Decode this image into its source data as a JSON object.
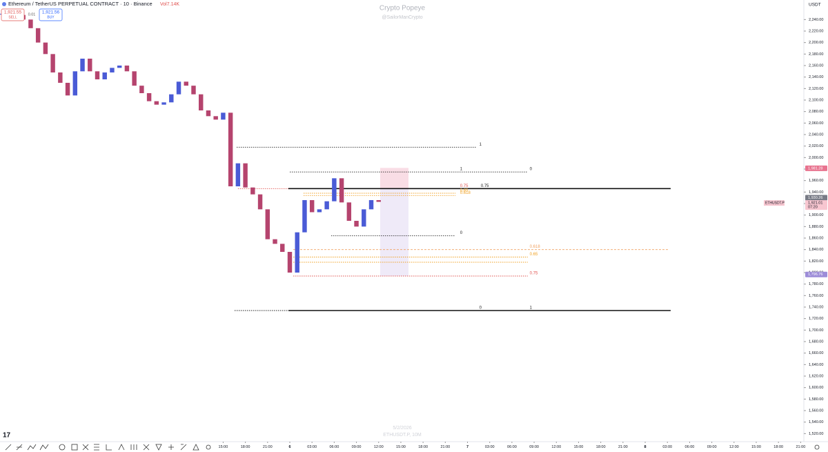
{
  "header": {
    "symbol": "Ethereum / TetherUS PERPETUAL CONTRACT · 10 · Binance",
    "volume": "Vol7.14K",
    "sell_price": "1,921.55",
    "sell": "SELL",
    "spread": "0.01",
    "buy_price": "1,921.56",
    "buy": "BUY",
    "currency": "USDT"
  },
  "watermark": {
    "title": "Crypto Popeye",
    "handle": "@SailorManCrypto",
    "date": "5/2/2026",
    "symbol": "ETHUSDT.P, 10M"
  },
  "chart_data": {
    "type": "candlestick",
    "up_color": "#4a5bd6",
    "down_color": "#b5446e",
    "x": [
      -39,
      -38,
      -37,
      -36,
      -35,
      -34,
      -33,
      -32,
      -31,
      -30,
      -29,
      -28,
      -27,
      -26,
      -25,
      -24,
      -23,
      -22,
      -21,
      -20,
      -19,
      -18,
      -17,
      -16,
      -15,
      -14,
      -13,
      -12,
      -11,
      -10,
      -9,
      -8,
      -7,
      -6,
      -5,
      -4,
      -3,
      -2,
      -1,
      0,
      1,
      2,
      3,
      4,
      5,
      6,
      7,
      8,
      9,
      10,
      11,
      12
    ],
    "close": [
      2250,
      2252,
      2248,
      2240,
      2225,
      2200,
      2180,
      2148,
      2130,
      2108,
      2150,
      2172,
      2150,
      2136,
      2148,
      2156,
      2160,
      2150,
      2125,
      2112,
      2098,
      2092,
      2096,
      2110,
      2132,
      2125,
      2110,
      2082,
      2072,
      2066,
      2078,
      1950,
      1990,
      1948,
      1936,
      1910,
      1858,
      1850,
      1836,
      1800,
      1870,
      1926,
      1905,
      1910,
      1924,
      1964,
      1922,
      1890,
      1880,
      1910,
      1926,
      1923
    ],
    "xlim": [
      -39.14,
      69.43
    ],
    "ylim": [
      1506,
      2274
    ],
    "xticks": [
      {
        "value": -9,
        "label": "15:00"
      },
      {
        "value": -6,
        "label": "18:00"
      },
      {
        "value": -3,
        "label": "21:00"
      },
      {
        "value": 0,
        "label": "6"
      },
      {
        "value": 3,
        "label": "03:00"
      },
      {
        "value": 6,
        "label": "06:00"
      },
      {
        "value": 9,
        "label": "09:00"
      },
      {
        "value": 12,
        "label": "12:00"
      },
      {
        "value": 15,
        "label": "15:00"
      },
      {
        "value": 18,
        "label": "18:00"
      },
      {
        "value": 21,
        "label": "21:00"
      },
      {
        "value": 24,
        "label": "7"
      },
      {
        "value": 27,
        "label": "03:00"
      },
      {
        "value": 30,
        "label": "06:00"
      },
      {
        "value": 33,
        "label": "09:00"
      },
      {
        "value": 36,
        "label": "12:00"
      },
      {
        "value": 39,
        "label": "15:00"
      },
      {
        "value": 42,
        "label": "18:00"
      },
      {
        "value": 45,
        "label": "21:00"
      },
      {
        "value": 48,
        "label": "8"
      },
      {
        "value": 51,
        "label": "03:00"
      },
      {
        "value": 54,
        "label": "06:00"
      },
      {
        "value": 57,
        "label": "09:00"
      },
      {
        "value": 60,
        "label": "12:00"
      },
      {
        "value": 63,
        "label": "15:00"
      },
      {
        "value": 66,
        "label": "18:00"
      },
      {
        "value": 69,
        "label": "21:00"
      }
    ],
    "yticks": [
      {
        "value": 2240,
        "label": "2,240.00"
      },
      {
        "value": 2220,
        "label": "2,220.00"
      },
      {
        "value": 2200,
        "label": "2,200.00"
      },
      {
        "value": 2180,
        "label": "2,180.00"
      },
      {
        "value": 2160,
        "label": "2,160.00"
      },
      {
        "value": 2140,
        "label": "2,140.00"
      },
      {
        "value": 2120,
        "label": "2,120.00"
      },
      {
        "value": 2100,
        "label": "2,100.00"
      },
      {
        "value": 2080,
        "label": "2,080.00"
      },
      {
        "value": 2060,
        "label": "2,060.00"
      },
      {
        "value": 2040,
        "label": "2,040.00"
      },
      {
        "value": 2020,
        "label": "2,020.00"
      },
      {
        "value": 2000,
        "label": "2,000.00"
      },
      {
        "value": 1980,
        "label": "1,980.00"
      },
      {
        "value": 1960,
        "label": "1,960.00"
      },
      {
        "value": 1940,
        "label": "1,940.00"
      },
      {
        "value": 1920,
        "label": "1,920.00"
      },
      {
        "value": 1900,
        "label": "1,900.00"
      },
      {
        "value": 1880,
        "label": "1,880.00"
      },
      {
        "value": 1860,
        "label": "1,860.00"
      },
      {
        "value": 1840,
        "label": "1,840.00"
      },
      {
        "value": 1820,
        "label": "1,820.00"
      },
      {
        "value": 1800,
        "label": "1,800.00"
      },
      {
        "value": 1780,
        "label": "1,780.00"
      },
      {
        "value": 1760,
        "label": "1,760.00"
      },
      {
        "value": 1740,
        "label": "1,740.00"
      },
      {
        "value": 1720,
        "label": "1,720.00"
      },
      {
        "value": 1700,
        "label": "1,700.00"
      },
      {
        "value": 1680,
        "label": "1,680.00"
      },
      {
        "value": 1660,
        "label": "1,660.00"
      },
      {
        "value": 1640,
        "label": "1,640.00"
      },
      {
        "value": 1620,
        "label": "1,620.00"
      },
      {
        "value": 1600,
        "label": "1,600.00"
      },
      {
        "value": 1580,
        "label": "1,580.00"
      },
      {
        "value": 1560,
        "label": "1,560.00"
      },
      {
        "value": 1540,
        "label": "1,540.00"
      },
      {
        "value": 1520,
        "label": "1,520.00"
      }
    ],
    "zones": [
      {
        "from": 551,
        "to": 592,
        "top": 1982,
        "bottom": 1946,
        "color": "#f8d7e0"
      },
      {
        "from": 551,
        "to": 592,
        "top": 1946,
        "bottom": 1794,
        "color": "#ece6f7"
      }
    ],
    "levels": [
      {
        "price": 2018,
        "from": -7.18,
        "to": 25.16,
        "style": "dotted",
        "color": "#222",
        "labels": [
          {
            "text": "1",
            "at": 25.6
          }
        ]
      },
      {
        "price": 1975,
        "from": 0,
        "to": 32.15,
        "style": "dotted",
        "color": "#222",
        "labels": [
          {
            "text": "1",
            "at": 23.0
          },
          {
            "text": "0",
            "at": 32.4
          }
        ]
      },
      {
        "price": 1946,
        "from": -7,
        "to": 22.37,
        "style": "dotted",
        "color": "#e0524f",
        "labels": [
          {
            "text": "0.75",
            "at": 23.0
          }
        ]
      },
      {
        "price": 1946,
        "from": -0.19,
        "to": 51.44,
        "style": "solid",
        "color": "#111",
        "labels": [
          {
            "text": "0.75",
            "at": 25.8
          }
        ]
      },
      {
        "price": 1938,
        "from": 1.86,
        "to": 22.37,
        "style": "dotted",
        "color": "#f0a020",
        "labels": [
          {
            "text": "0.65",
            "at": 23.0
          }
        ]
      },
      {
        "price": 1934,
        "from": 1.86,
        "to": 22.37,
        "style": "dotted",
        "color": "#f0a020",
        "labels": [
          {
            "text": "0.618",
            "at": 23.0
          }
        ]
      },
      {
        "price": 1864,
        "from": 5.59,
        "to": 22.37,
        "style": "dotted",
        "color": "#222",
        "labels": [
          {
            "text": "0",
            "at": 23.0
          }
        ]
      },
      {
        "price": 1840,
        "from": 0.47,
        "to": 51.26,
        "style": "dashed",
        "color": "#f0a060",
        "labels": [
          {
            "text": "0.618",
            "at": 32.4
          }
        ]
      },
      {
        "price": 1827,
        "from": 0.47,
        "to": 32.15,
        "style": "dotted",
        "color": "#f0a020",
        "labels": [
          {
            "text": "0.65",
            "at": 32.4
          }
        ]
      },
      {
        "price": 1818,
        "from": 0.47,
        "to": 32.15,
        "style": "dotted",
        "color": "#f0a020",
        "labels": []
      },
      {
        "price": 1794,
        "from": 0.47,
        "to": 32.15,
        "style": "dotted",
        "color": "#e0524f",
        "labels": [
          {
            "text": "0.75",
            "at": 32.4
          }
        ]
      },
      {
        "price": 1734,
        "from": -0.19,
        "to": 51.44,
        "style": "solid",
        "color": "#111",
        "labels": [
          {
            "text": "0",
            "at": 25.6
          },
          {
            "text": "1",
            "at": 32.4
          }
        ]
      },
      {
        "price": 1734,
        "from": -7.46,
        "to": -0.19,
        "style": "dotted",
        "color": "#222",
        "labels": []
      }
    ],
    "price_tags": [
      {
        "price": 1981.28,
        "label": "1,981.28",
        "color": "#e8738f"
      },
      {
        "price": 1930.26,
        "label": "1,930.26",
        "color": "#787b86"
      },
      {
        "price": 1921.01,
        "label": "1,921.01",
        "color": "#f7c6d0",
        "sub": "07:20"
      },
      {
        "price": 1796.76,
        "label": "1,796.76",
        "color": "#9c8cd8"
      }
    ],
    "symbol_tag": "ETHUSDT.P"
  }
}
